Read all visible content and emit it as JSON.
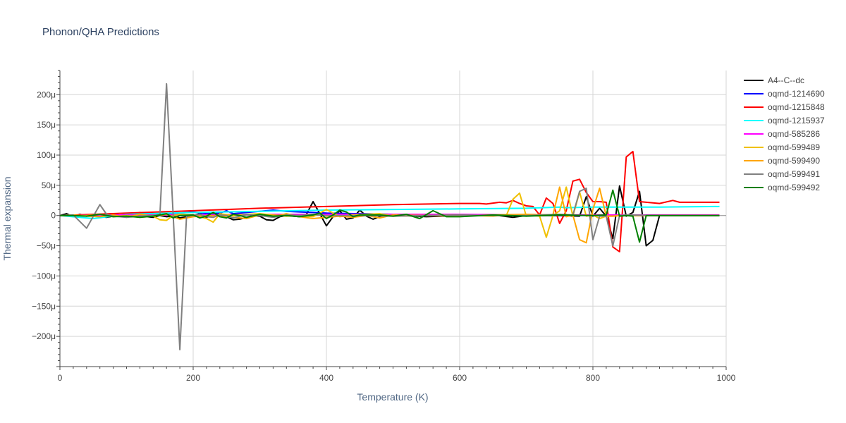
{
  "chart_data": {
    "type": "line",
    "title": "Phonon/QHA Predictions",
    "xlabel": "Temperature (K)",
    "ylabel": "Thermal expansion",
    "xlim": [
      0,
      1000
    ],
    "ylim": [
      -250,
      240
    ],
    "y_unit_suffix": "μ",
    "x_ticks": [
      0,
      200,
      400,
      600,
      800,
      1000
    ],
    "y_ticks": [
      -200,
      -150,
      -100,
      -50,
      0,
      50,
      100,
      150,
      200
    ],
    "y_tick_labels": [
      "−200μ",
      "−150μ",
      "−100μ",
      "−50μ",
      "0",
      "50μ",
      "100μ",
      "150μ",
      "200μ"
    ],
    "grid": true,
    "legend_position": "right",
    "series": [
      {
        "name": "A4--C--dc",
        "color": "#000000",
        "x": [
          0,
          10,
          20,
          30,
          40,
          50,
          60,
          70,
          80,
          90,
          100,
          110,
          120,
          130,
          140,
          150,
          160,
          170,
          180,
          190,
          200,
          210,
          220,
          230,
          240,
          250,
          260,
          270,
          280,
          290,
          300,
          310,
          320,
          330,
          340,
          350,
          360,
          370,
          380,
          390,
          400,
          410,
          420,
          430,
          440,
          450,
          460,
          470,
          480,
          490,
          500,
          550,
          600,
          650,
          680,
          700,
          750,
          780,
          790,
          800,
          810,
          820,
          830,
          840,
          850,
          860,
          870,
          880,
          890,
          900,
          950,
          990
        ],
        "y": [
          0,
          3,
          -2,
          2,
          -1,
          1,
          -2,
          -3,
          -1,
          0,
          -2,
          -1,
          -1,
          -2,
          -3,
          0,
          -2,
          -1,
          -4,
          -2,
          0,
          3,
          -3,
          1,
          3,
          -2,
          -7,
          -6,
          -3,
          0,
          -1,
          -7,
          -8,
          -2,
          0,
          -1,
          -2,
          2,
          23,
          3,
          -17,
          -2,
          8,
          -6,
          -4,
          9,
          -1,
          -6,
          -2,
          0,
          1,
          -2,
          0,
          1,
          -3,
          0,
          0,
          -1,
          31,
          -1,
          12,
          -1,
          -38,
          49,
          -1,
          5,
          40,
          -50,
          -41,
          0,
          0,
          0
        ]
      },
      {
        "name": "oqmd-1214690",
        "color": "#0000ff",
        "x": [
          0,
          20,
          40,
          60,
          80,
          100,
          120,
          140,
          160,
          180,
          200,
          220,
          240,
          250,
          260,
          280,
          300,
          320,
          340,
          360,
          380,
          400,
          450,
          500,
          600,
          700,
          800,
          900,
          990
        ],
        "y": [
          0,
          -1,
          1,
          -1,
          3,
          -2,
          5,
          2,
          3,
          4,
          6,
          3,
          4,
          8,
          3,
          5,
          7,
          9,
          7,
          6,
          5,
          4,
          3,
          2,
          1,
          1,
          0,
          0,
          0
        ]
      },
      {
        "name": "oqmd-1215848",
        "color": "#ff0000",
        "x": [
          0,
          100,
          200,
          300,
          400,
          500,
          600,
          630,
          640,
          660,
          670,
          680,
          690,
          700,
          710,
          720,
          730,
          740,
          750,
          760,
          770,
          780,
          790,
          800,
          810,
          820,
          830,
          840,
          850,
          860,
          870,
          880,
          900,
          920,
          930,
          950,
          990
        ],
        "y": [
          0,
          4,
          8,
          12,
          15,
          18,
          20,
          20,
          19,
          22,
          21,
          25,
          20,
          16,
          15,
          1,
          29,
          20,
          -13,
          8,
          57,
          60,
          38,
          23,
          23,
          22,
          -52,
          -60,
          97,
          106,
          23,
          22,
          20,
          25,
          22,
          22,
          22
        ]
      },
      {
        "name": "oqmd-1215937",
        "color": "#00ffff",
        "x": [
          0,
          50,
          100,
          200,
          300,
          400,
          500,
          600,
          700,
          750,
          760,
          800,
          900,
          990
        ],
        "y": [
          0,
          -5,
          2,
          5,
          7,
          9,
          10,
          11,
          12,
          14,
          13,
          14,
          14,
          15
        ]
      },
      {
        "name": "oqmd-585286",
        "color": "#ff00ff",
        "x": [
          0,
          100,
          200,
          300,
          400,
          500,
          600,
          700,
          800,
          900,
          990
        ],
        "y": [
          0,
          1,
          1,
          2,
          2,
          2,
          2,
          1,
          1,
          1,
          1
        ]
      },
      {
        "name": "oqmd-599489",
        "color": "#f0c000",
        "x": [
          0,
          20,
          40,
          60,
          80,
          100,
          120,
          140,
          150,
          160,
          170,
          180,
          200,
          220,
          230,
          240,
          260,
          280,
          300,
          320,
          340,
          360,
          380,
          400,
          420,
          440,
          460,
          480,
          500,
          550,
          600,
          650,
          660,
          670,
          680,
          690,
          700,
          710,
          720,
          730,
          740,
          750,
          760,
          770,
          780,
          790,
          800,
          810,
          820,
          830,
          840,
          850,
          900,
          990
        ],
        "y": [
          0,
          0,
          0,
          2,
          -2,
          0,
          -3,
          -1,
          -7,
          -8,
          0,
          2,
          1,
          -5,
          -11,
          3,
          0,
          2,
          3,
          1,
          -1,
          0,
          -2,
          10,
          -2,
          1,
          2,
          3,
          -1,
          0,
          1,
          -1,
          0,
          0,
          27,
          37,
          -1,
          0,
          -1,
          -36,
          0,
          8,
          47,
          -1,
          39,
          -1,
          1,
          -5,
          -1,
          -1,
          0,
          0,
          0,
          0
        ]
      },
      {
        "name": "oqmd-599490",
        "color": "#ffa500",
        "x": [
          0,
          20,
          40,
          60,
          80,
          100,
          120,
          140,
          160,
          170,
          180,
          200,
          220,
          240,
          260,
          280,
          300,
          320,
          340,
          360,
          380,
          400,
          420,
          440,
          460,
          480,
          500,
          550,
          600,
          650,
          700,
          740,
          750,
          760,
          770,
          780,
          790,
          800,
          810,
          820,
          830,
          840,
          850,
          900,
          990
        ],
        "y": [
          0,
          1,
          -1,
          -2,
          1,
          -3,
          2,
          -1,
          2,
          -2,
          -6,
          -2,
          0,
          -1,
          -3,
          -5,
          1,
          -2,
          3,
          -2,
          -5,
          -3,
          -1,
          -3,
          0,
          -4,
          1,
          0,
          -1,
          1,
          2,
          1,
          47,
          -2,
          1,
          -40,
          -45,
          10,
          45,
          -1,
          -1,
          0,
          0,
          0,
          0
        ]
      },
      {
        "name": "oqmd-599491",
        "color": "#808080",
        "x": [
          0,
          20,
          40,
          60,
          70,
          80,
          100,
          120,
          150,
          160,
          170,
          180,
          190,
          200,
          210,
          220,
          230,
          240,
          250,
          260,
          280,
          300,
          320,
          340,
          360,
          380,
          400,
          450,
          500,
          550,
          600,
          650,
          700,
          750,
          770,
          780,
          790,
          800,
          810,
          820,
          830,
          840,
          850,
          900,
          990
        ],
        "y": [
          0,
          1,
          -21,
          18,
          2,
          -1,
          -3,
          -1,
          1,
          218,
          -1,
          -222,
          -1,
          0,
          2,
          -2,
          -3,
          1,
          0,
          -4,
          2,
          0,
          -3,
          1,
          0,
          2,
          0,
          0,
          -1,
          0,
          1,
          0,
          0,
          2,
          1,
          40,
          45,
          -40,
          -1,
          -1,
          -50,
          0,
          1,
          0,
          0
        ]
      },
      {
        "name": "oqmd-599492",
        "color": "#008000",
        "x": [
          0,
          20,
          40,
          60,
          80,
          100,
          120,
          140,
          160,
          170,
          180,
          200,
          210,
          220,
          230,
          240,
          250,
          260,
          270,
          280,
          300,
          320,
          340,
          360,
          380,
          390,
          400,
          410,
          420,
          430,
          440,
          450,
          480,
          500,
          520,
          540,
          560,
          580,
          600,
          650,
          700,
          750,
          800,
          820,
          830,
          840,
          850,
          860,
          870,
          880,
          890,
          900,
          950,
          990
        ],
        "y": [
          0,
          0,
          -1,
          2,
          -2,
          -1,
          -3,
          -1,
          3,
          -4,
          0,
          1,
          -4,
          -1,
          5,
          -2,
          -4,
          2,
          0,
          -3,
          2,
          -1,
          0,
          -2,
          1,
          4,
          -5,
          1,
          9,
          6,
          -2,
          1,
          1,
          -1,
          2,
          -5,
          8,
          -2,
          -2,
          1,
          -1,
          1,
          0,
          1,
          42,
          -1,
          0,
          -1,
          -44,
          0,
          0,
          0,
          0,
          0
        ]
      }
    ]
  }
}
